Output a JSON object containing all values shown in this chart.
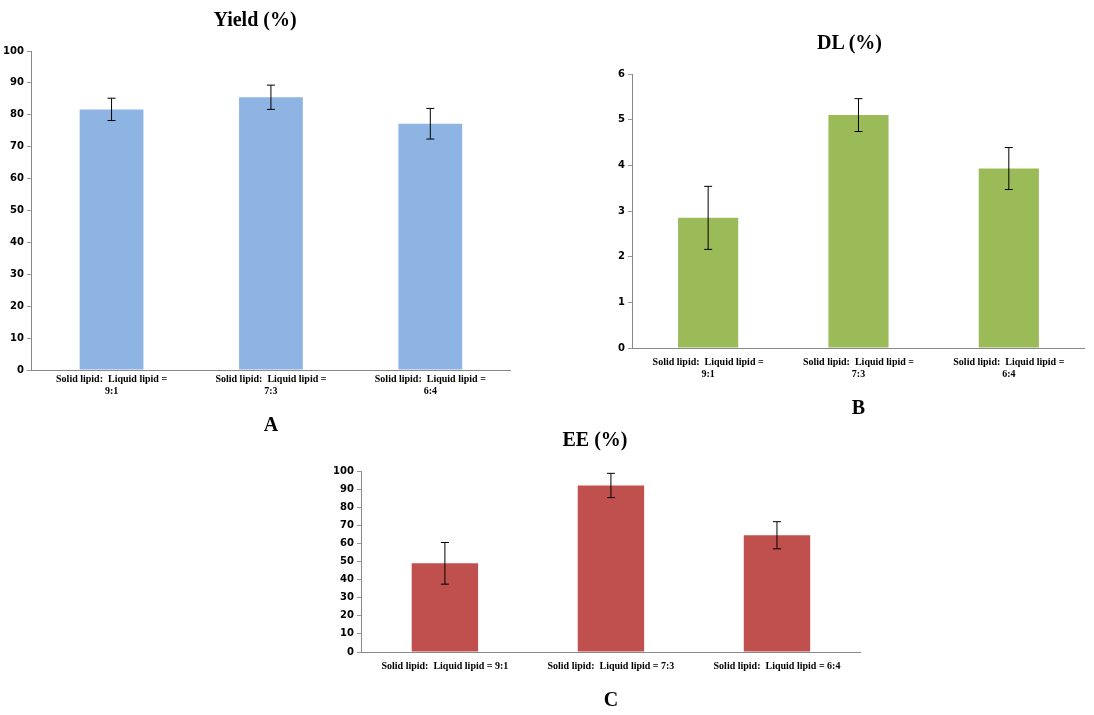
{
  "chart_data": [
    {
      "type": "bar",
      "title": "Yield (%)",
      "categories": [
        "Solid lipid:  Liquid lipid = 9:1",
        "Solid lipid:  Liquid lipid = 7:3",
        "Solid lipid:  Liquid lipid = 6:4"
      ],
      "values": [
        81.7,
        85.5,
        77.2
      ],
      "errors": [
        3.5,
        3.8,
        4.8
      ],
      "color": "#8eb4e3",
      "ylim": [
        0,
        100
      ],
      "yticks": [
        0,
        10,
        20,
        30,
        40,
        50,
        60,
        70,
        80,
        90,
        100
      ],
      "grid": false,
      "annotations": [
        "A"
      ]
    },
    {
      "type": "bar",
      "title": "DL (%)",
      "categories": [
        "Solid lipid:  Liquid lipid = 9:1",
        "Solid lipid:  Liquid lipid = 7:3",
        "Solid lipid:  Liquid lipid = 6:4"
      ],
      "values": [
        2.85,
        5.1,
        3.93
      ],
      "errors": [
        0.69,
        0.36,
        0.46
      ],
      "color": "#9bbb59",
      "ylim": [
        0,
        6
      ],
      "yticks": [
        0,
        1,
        2,
        3,
        4,
        5,
        6
      ],
      "grid": false,
      "annotations": [
        "B"
      ]
    },
    {
      "type": "bar",
      "title": "EE (%)",
      "categories": [
        "Solid lipid:  Liquid lipid = 9:1",
        "Solid lipid:  Liquid lipid = 7:3",
        "Solid lipid:  Liquid lipid = 6:4"
      ],
      "values": [
        49,
        92,
        64.5
      ],
      "errors": [
        11.5,
        6.7,
        7.5
      ],
      "color": "#c0504d",
      "ylim": [
        0,
        100
      ],
      "yticks": [
        0,
        10,
        20,
        30,
        40,
        50,
        60,
        70,
        80,
        90,
        100
      ],
      "grid": false,
      "annotations": [
        "C"
      ]
    }
  ]
}
